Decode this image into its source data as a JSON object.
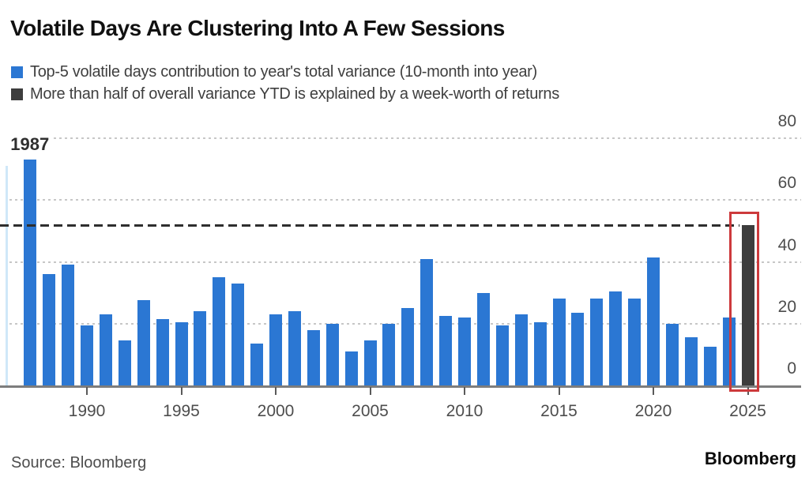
{
  "title": "Volatile Days Are Clustering Into A Few Sessions",
  "legend": [
    {
      "label": "Top-5 volatile days contribution to year's total variance (10-month into year)",
      "color": "#2b77d3"
    },
    {
      "label": "More than half of overall variance YTD is explained by a week-worth of returns",
      "color": "#3d3d3d"
    }
  ],
  "annotation_1987": "1987",
  "source": "Source: Bloomberg",
  "brand": "Bloomberg",
  "colors": {
    "bar_blue": "#2b77d3",
    "bar_dark": "#3d3d3d",
    "highlight_red": "#cd3a3c",
    "dashed_line": "#2e2e2e",
    "gridline": "#c7c7c7",
    "axis": "#7d7d7d",
    "text_dark": "#111111",
    "text_gray": "#4d4d4d"
  },
  "chart_data": {
    "type": "bar",
    "title": "Volatile Days Are Clustering Into A Few Sessions",
    "xlabel": "",
    "ylabel": "",
    "ylim": [
      0,
      80
    ],
    "y_ticks": [
      0,
      20,
      40,
      60,
      80
    ],
    "x_ticks": [
      1990,
      1995,
      2000,
      2005,
      2010,
      2015,
      2020,
      2025
    ],
    "grid": "dotted horizontal",
    "legend_position": "top-left",
    "y_axis_side": "right",
    "dashed_reference_line_value": 52,
    "highlight_year": 2025,
    "highlight_note": "2025 bar drawn in dark gray and outlined with a red rectangle",
    "annotation": {
      "year": 1987,
      "text": "1987"
    },
    "years": [
      1987,
      1988,
      1989,
      1990,
      1991,
      1992,
      1993,
      1994,
      1995,
      1996,
      1997,
      1998,
      1999,
      2000,
      2001,
      2002,
      2003,
      2004,
      2005,
      2006,
      2007,
      2008,
      2009,
      2010,
      2011,
      2012,
      2013,
      2014,
      2015,
      2016,
      2017,
      2018,
      2019,
      2020,
      2021,
      2022,
      2023,
      2024,
      2025
    ],
    "values": [
      73,
      36,
      39,
      19.5,
      23,
      14.5,
      27.5,
      21.5,
      20.5,
      24,
      35,
      33,
      13.5,
      23,
      24,
      18,
      20,
      11,
      14.5,
      20,
      25,
      41,
      22.5,
      22,
      30,
      19.5,
      23,
      20.5,
      28,
      23.5,
      28,
      30.5,
      28,
      41.5,
      20,
      15.5,
      12.5,
      22,
      52
    ],
    "series": [
      {
        "name": "Top-5 volatile days contribution to year's total variance (10-month into year)",
        "color": "#2b77d3",
        "applies_to": "years 1987-2024"
      },
      {
        "name": "More than half of overall variance YTD is explained by a week-worth of returns",
        "color": "#3d3d3d",
        "applies_to": "year 2025"
      }
    ]
  }
}
